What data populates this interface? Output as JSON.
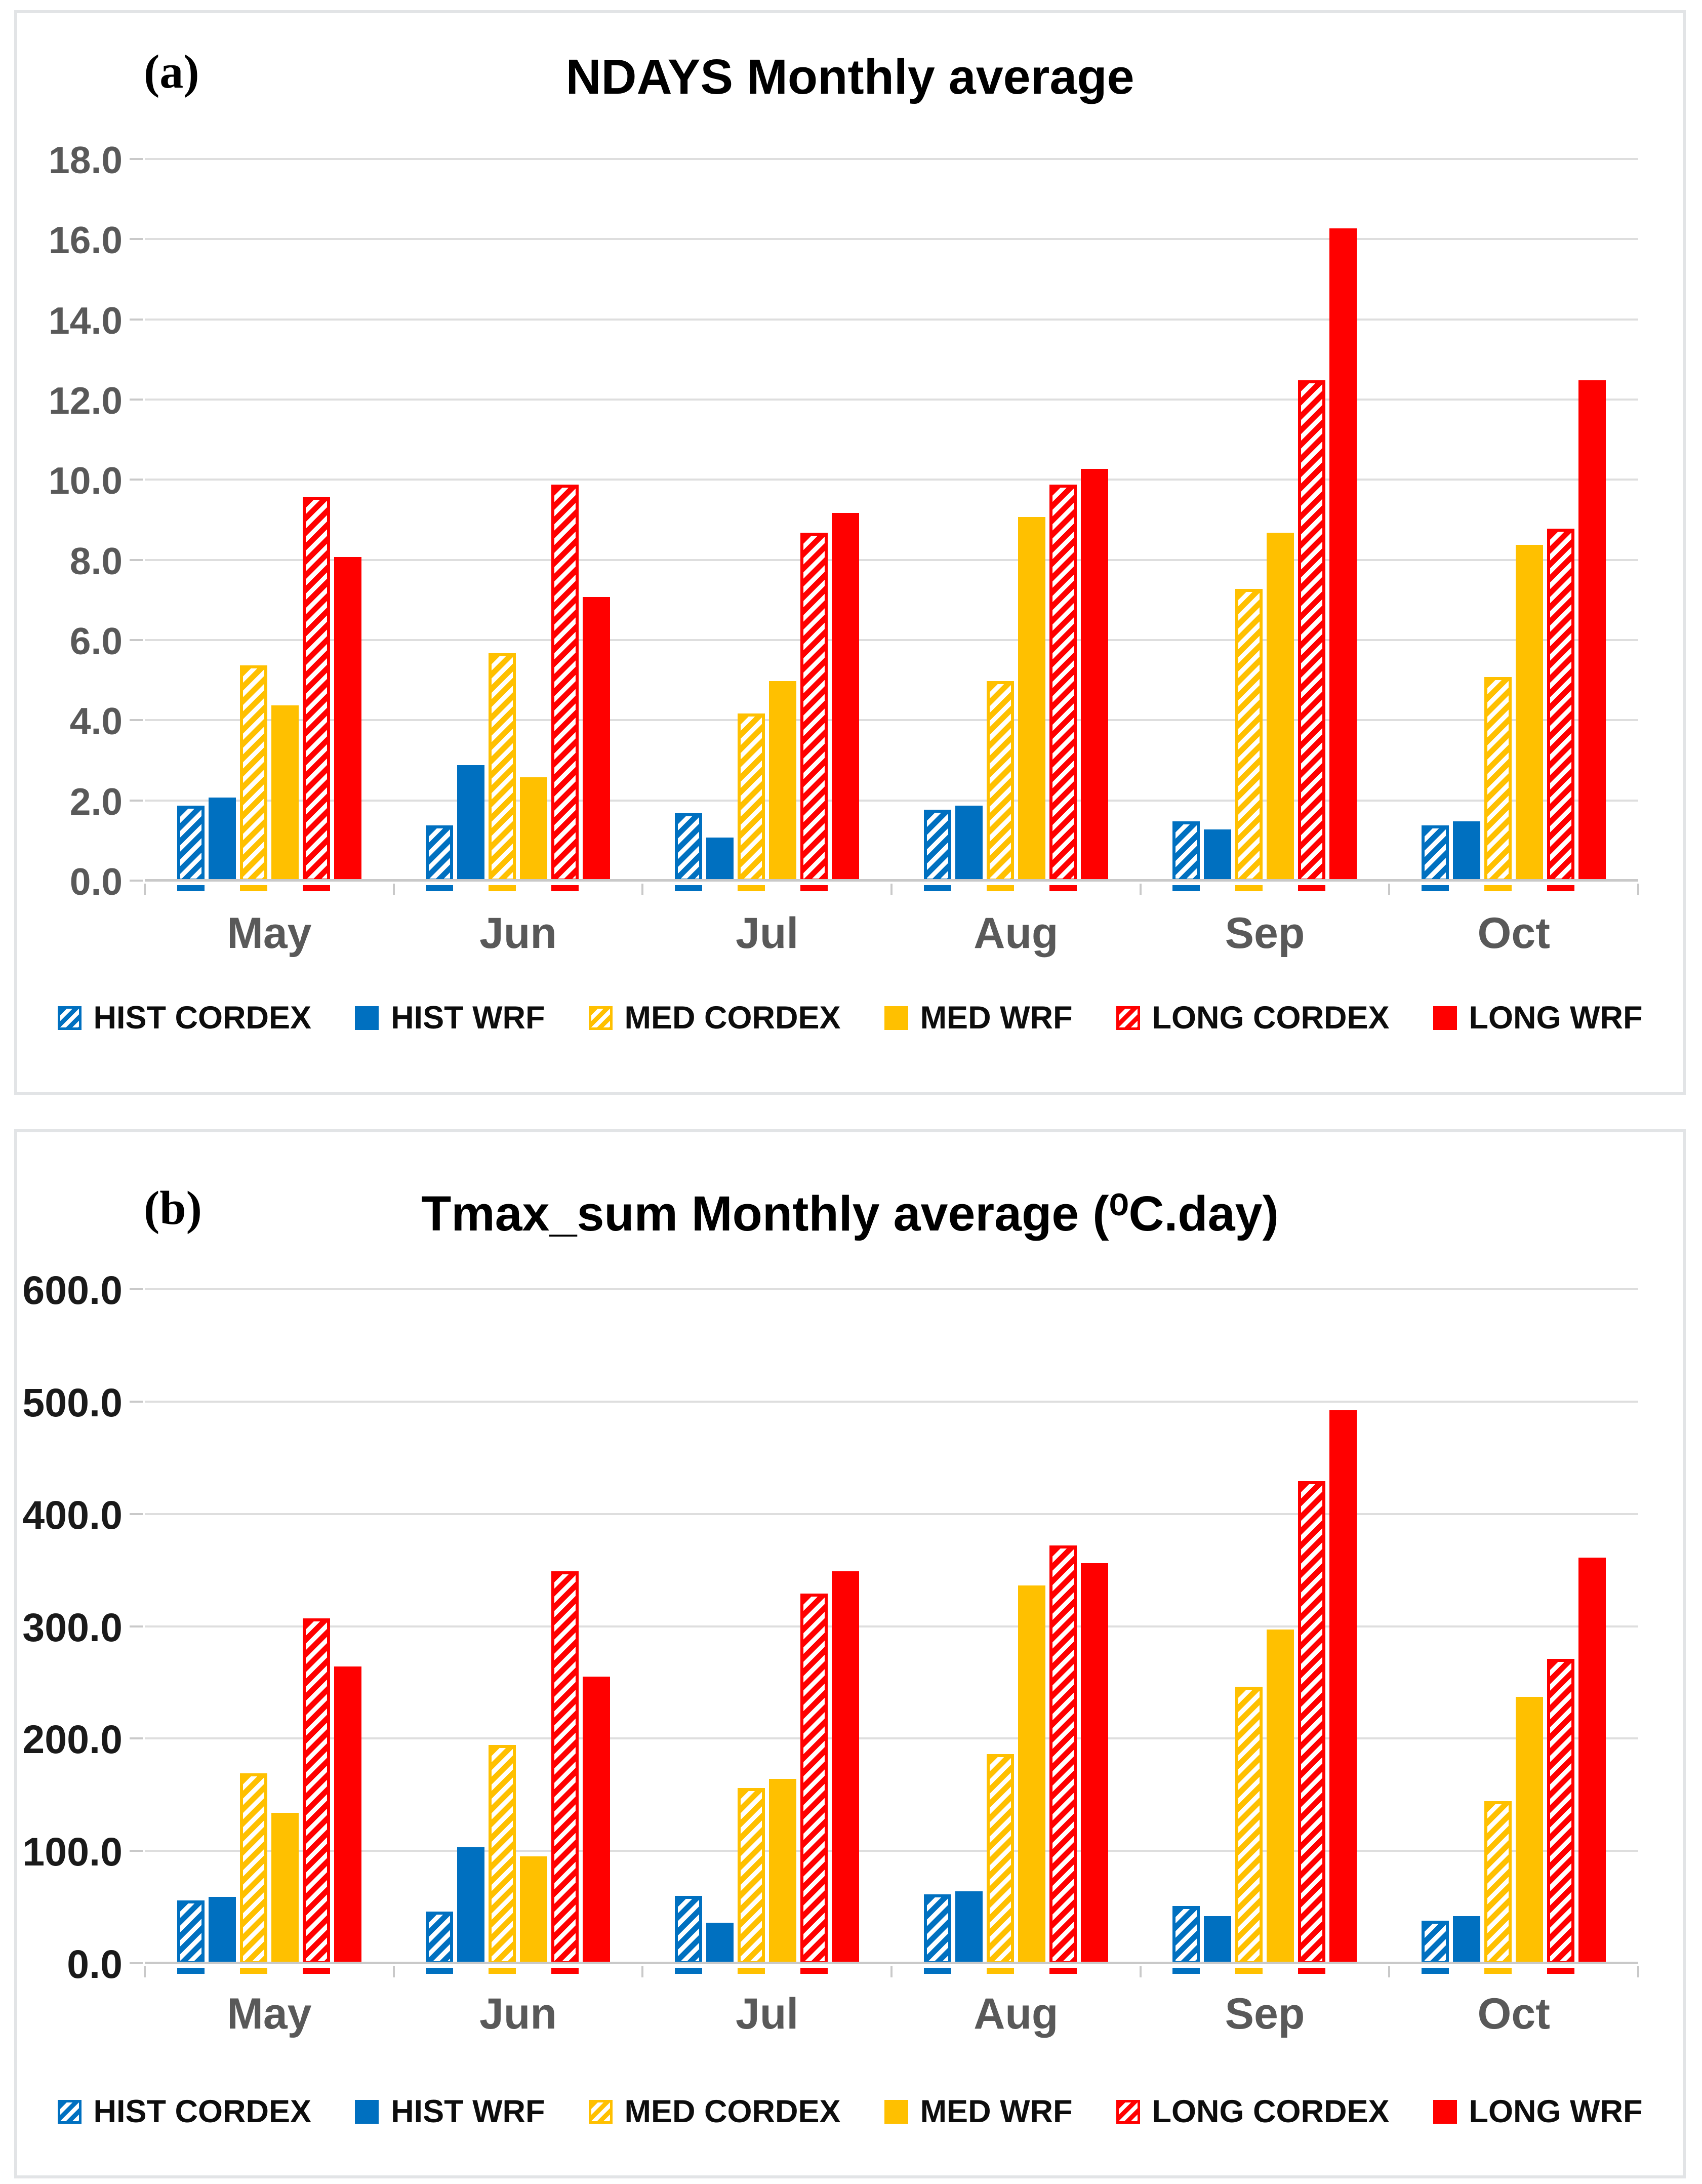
{
  "chart_data": [
    {
      "type": "bar",
      "panel_label": "(a)",
      "title": "NDAYS Monthly average",
      "categories": [
        "May",
        "Jun",
        "Jul",
        "Aug",
        "Sep",
        "Oct"
      ],
      "series": [
        {
          "name": "HIST CORDEX",
          "color": "#0070C0",
          "hatch": true,
          "values": [
            1.9,
            1.4,
            1.7,
            1.8,
            1.5,
            1.4
          ]
        },
        {
          "name": "HIST WRF",
          "color": "#0070C0",
          "hatch": false,
          "values": [
            2.1,
            2.9,
            1.1,
            1.9,
            1.3,
            1.5
          ]
        },
        {
          "name": "MED CORDEX",
          "color": "#FFC000",
          "hatch": true,
          "values": [
            5.4,
            5.7,
            4.2,
            5.0,
            7.3,
            5.1
          ]
        },
        {
          "name": "MED WRF",
          "color": "#FFC000",
          "hatch": false,
          "values": [
            4.4,
            2.6,
            5.0,
            9.1,
            8.7,
            8.4
          ]
        },
        {
          "name": "LONG CORDEX",
          "color": "#FF0000",
          "hatch": true,
          "values": [
            9.6,
            9.9,
            8.7,
            9.9,
            12.5,
            8.8
          ]
        },
        {
          "name": "LONG WRF",
          "color": "#FF0000",
          "hatch": false,
          "values": [
            8.1,
            7.1,
            9.2,
            10.3,
            16.3,
            12.5
          ]
        }
      ],
      "ylim": [
        0,
        18
      ],
      "ytick_step": 2,
      "ytick_decimals": 1,
      "grid": true,
      "legend_position": "bottom",
      "axis_text_color": "#595959"
    },
    {
      "type": "bar",
      "panel_label": "(b)",
      "title": "Tmax_sum Monthly average (⁰C.day)",
      "categories": [
        "May",
        "Jun",
        "Jul",
        "Aug",
        "Sep",
        "Oct"
      ],
      "series": [
        {
          "name": "HIST CORDEX",
          "color": "#0070C0",
          "hatch": true,
          "values": [
            57,
            47,
            61,
            62,
            52,
            39
          ]
        },
        {
          "name": "HIST WRF",
          "color": "#0070C0",
          "hatch": false,
          "values": [
            60,
            104,
            37,
            65,
            43,
            43
          ]
        },
        {
          "name": "MED CORDEX",
          "color": "#FFC000",
          "hatch": true,
          "values": [
            170,
            195,
            157,
            187,
            247,
            145
          ]
        },
        {
          "name": "MED WRF",
          "color": "#FFC000",
          "hatch": false,
          "values": [
            135,
            96,
            165,
            337,
            298,
            238
          ]
        },
        {
          "name": "LONG CORDEX",
          "color": "#FF0000",
          "hatch": true,
          "values": [
            308,
            350,
            330,
            373,
            430,
            272
          ]
        },
        {
          "name": "LONG WRF",
          "color": "#FF0000",
          "hatch": false,
          "values": [
            265,
            256,
            350,
            357,
            493,
            362
          ]
        }
      ],
      "ylim": [
        0,
        600
      ],
      "ytick_step": 100,
      "ytick_decimals": 1,
      "grid": true,
      "legend_position": "bottom",
      "axis_text_color": "#1a1a1a"
    }
  ]
}
